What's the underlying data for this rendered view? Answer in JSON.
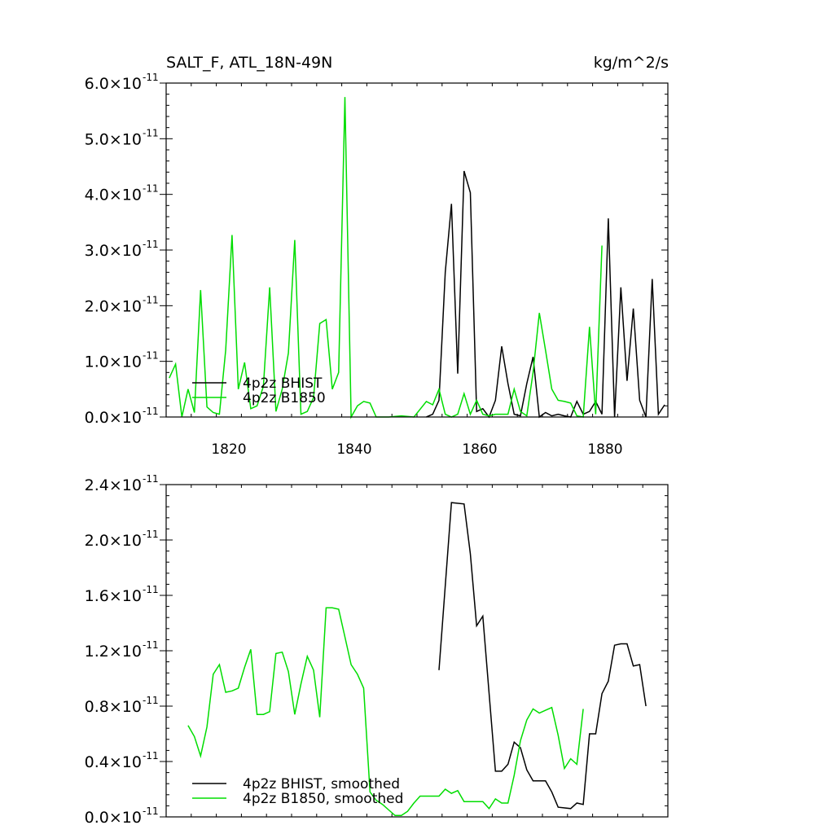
{
  "chart_data": [
    {
      "type": "line",
      "title": "SALT_F, ATL_18N-49N",
      "units": "kg/m^2/s",
      "xlim": [
        1810,
        1890
      ],
      "ylim": [
        0,
        6e-11
      ],
      "x_ticks": [
        1820,
        1840,
        1860,
        1880
      ],
      "x_tick_labels": [
        "1820",
        "1840",
        "1860",
        "1880"
      ],
      "y_ticks": [
        0,
        1e-11,
        2e-11,
        3e-11,
        4e-11,
        5e-11,
        6e-11
      ],
      "y_tick_mantissas": [
        "0.0",
        "1.0",
        "2.0",
        "3.0",
        "4.0",
        "5.0",
        "6.0"
      ],
      "y_tick_suffix": "×10",
      "y_tick_exponent": "-11",
      "legend_placement": "bottom-left",
      "series": [
        {
          "name": "4p2z BHIST",
          "color": "#000000",
          "points": [
            [
              1851.5,
              0.0
            ],
            [
              1852.5,
              5e-13
            ],
            [
              1853.5,
              3e-12
            ],
            [
              1854.5,
              2.6e-11
            ],
            [
              1855.5,
              3.83e-11
            ],
            [
              1856.5,
              7.8e-12
            ],
            [
              1857.5,
              4.42e-11
            ],
            [
              1858.5,
              4.03e-11
            ],
            [
              1859.5,
              1e-12
            ],
            [
              1860.5,
              1.5e-12
            ],
            [
              1861.5,
              0.0
            ],
            [
              1862.5,
              3e-12
            ],
            [
              1863.5,
              1.27e-11
            ],
            [
              1864.5,
              6e-12
            ],
            [
              1865.5,
              5e-13
            ],
            [
              1866.5,
              2e-13
            ],
            [
              1867.5,
              6e-12
            ],
            [
              1868.5,
              1.08e-11
            ],
            [
              1869.5,
              0.0
            ],
            [
              1870.5,
              8e-13
            ],
            [
              1871.5,
              2e-13
            ],
            [
              1872.5,
              5e-13
            ],
            [
              1873.5,
              2e-13
            ],
            [
              1874.5,
              0.0
            ],
            [
              1875.5,
              2.8e-12
            ],
            [
              1876.5,
              5e-13
            ],
            [
              1877.5,
              1e-12
            ],
            [
              1878.5,
              2.8e-12
            ],
            [
              1879.5,
              5e-13
            ],
            [
              1880.5,
              3.57e-11
            ],
            [
              1881.5,
              0.0
            ],
            [
              1882.5,
              2.33e-11
            ],
            [
              1883.5,
              6.5e-12
            ],
            [
              1884.5,
              1.95e-11
            ],
            [
              1885.5,
              3e-12
            ],
            [
              1886.5,
              0.0
            ],
            [
              1887.5,
              2.48e-11
            ],
            [
              1888.5,
              5e-13
            ],
            [
              1889.5,
              2.2e-12
            ]
          ]
        },
        {
          "name": "4p2z B1850",
          "color": "#00dd00",
          "points": [
            [
              1810.5,
              7e-12
            ],
            [
              1811.5,
              9.5e-12
            ],
            [
              1812.5,
              0.0
            ],
            [
              1813.5,
              5e-12
            ],
            [
              1814.5,
              8e-13
            ],
            [
              1815.5,
              2.28e-11
            ],
            [
              1816.5,
              1.8e-12
            ],
            [
              1817.5,
              8e-13
            ],
            [
              1818.5,
              5e-13
            ],
            [
              1819.5,
              1.2e-11
            ],
            [
              1820.5,
              3.27e-11
            ],
            [
              1821.5,
              5e-12
            ],
            [
              1822.5,
              9.8e-12
            ],
            [
              1823.5,
              1.5e-12
            ],
            [
              1824.5,
              2e-12
            ],
            [
              1825.5,
              5.5e-12
            ],
            [
              1826.5,
              2.33e-11
            ],
            [
              1827.5,
              1e-12
            ],
            [
              1828.5,
              5e-12
            ],
            [
              1829.5,
              1.15e-11
            ],
            [
              1830.5,
              3.18e-11
            ],
            [
              1831.5,
              5e-13
            ],
            [
              1832.5,
              1e-12
            ],
            [
              1833.5,
              3.5e-12
            ],
            [
              1834.5,
              1.68e-11
            ],
            [
              1835.5,
              1.75e-11
            ],
            [
              1836.5,
              5e-12
            ],
            [
              1837.5,
              8e-12
            ],
            [
              1838.5,
              5.75e-11
            ],
            [
              1839.5,
              0.0
            ],
            [
              1840.5,
              2e-12
            ],
            [
              1841.5,
              2.8e-12
            ],
            [
              1842.5,
              2.5e-12
            ],
            [
              1843.5,
              0.0
            ],
            [
              1845.5,
              0.0
            ],
            [
              1847.5,
              2e-13
            ],
            [
              1849.5,
              0.0
            ],
            [
              1851.5,
              2.8e-12
            ],
            [
              1852.5,
              2.2e-12
            ],
            [
              1853.5,
              5e-12
            ],
            [
              1854.5,
              5e-13
            ],
            [
              1855.5,
              0.0
            ],
            [
              1856.5,
              5e-13
            ],
            [
              1857.5,
              4.2e-12
            ],
            [
              1858.5,
              5e-13
            ],
            [
              1859.5,
              3e-12
            ],
            [
              1860.5,
              5e-13
            ],
            [
              1861.5,
              2e-13
            ],
            [
              1862.5,
              5e-13
            ],
            [
              1863.5,
              5e-13
            ],
            [
              1864.5,
              5e-13
            ],
            [
              1865.5,
              5e-12
            ],
            [
              1866.5,
              1e-12
            ],
            [
              1867.5,
              2e-13
            ],
            [
              1868.5,
              8e-12
            ],
            [
              1869.5,
              1.87e-11
            ],
            [
              1870.5,
              1.2e-11
            ],
            [
              1871.5,
              5e-12
            ],
            [
              1872.5,
              3e-12
            ],
            [
              1873.5,
              2.8e-12
            ],
            [
              1874.5,
              2.5e-12
            ],
            [
              1875.5,
              2e-13
            ],
            [
              1876.5,
              0.0
            ],
            [
              1877.5,
              1.62e-11
            ],
            [
              1878.5,
              5e-13
            ],
            [
              1879.5,
              3.08e-11
            ]
          ]
        }
      ]
    },
    {
      "type": "line",
      "xlim": [
        1810,
        1890
      ],
      "ylim": [
        0,
        2.4e-11
      ],
      "x_ticks": [
        1820,
        1840,
        1860,
        1880
      ],
      "y_ticks": [
        0,
        4e-12,
        8e-12,
        1.2e-11,
        1.6e-11,
        2e-11,
        2.4e-11
      ],
      "y_tick_mantissas": [
        "0.0",
        "0.4",
        "0.8",
        "1.2",
        "1.6",
        "2.0",
        "2.4"
      ],
      "y_tick_suffix": "×10",
      "y_tick_exponent": "-11",
      "legend_placement": "bottom-left",
      "series": [
        {
          "name": "4p2z BHIST, smoothed",
          "color": "#000000",
          "points": [
            [
              1853.5,
              1.06e-11
            ],
            [
              1855.5,
              2.27e-11
            ],
            [
              1857.5,
              2.26e-11
            ],
            [
              1858.5,
              1.9e-11
            ],
            [
              1859.5,
              1.38e-11
            ],
            [
              1860.5,
              1.45e-11
            ],
            [
              1862.5,
              3.3e-12
            ],
            [
              1863.5,
              3.3e-12
            ],
            [
              1864.5,
              3.8e-12
            ],
            [
              1865.5,
              5.4e-12
            ],
            [
              1866.5,
              5e-12
            ],
            [
              1867.5,
              3.4e-12
            ],
            [
              1868.5,
              2.6e-12
            ],
            [
              1870.5,
              2.6e-12
            ],
            [
              1871.5,
              1.8e-12
            ],
            [
              1872.5,
              7e-13
            ],
            [
              1874.5,
              6e-13
            ],
            [
              1875.5,
              1e-12
            ],
            [
              1876.5,
              9e-13
            ],
            [
              1877.5,
              6e-12
            ],
            [
              1878.5,
              6e-12
            ],
            [
              1879.5,
              8.9e-12
            ],
            [
              1880.5,
              9.8e-12
            ],
            [
              1881.5,
              1.24e-11
            ],
            [
              1882.5,
              1.25e-11
            ],
            [
              1883.5,
              1.25e-11
            ],
            [
              1884.5,
              1.09e-11
            ],
            [
              1885.5,
              1.1e-11
            ],
            [
              1886.5,
              8e-12
            ]
          ]
        },
        {
          "name": "4p2z B1850, smoothed",
          "color": "#00dd00",
          "points": [
            [
              1813.5,
              6.6e-12
            ],
            [
              1814.5,
              5.8e-12
            ],
            [
              1815.5,
              4.4e-12
            ],
            [
              1816.5,
              6.5e-12
            ],
            [
              1817.5,
              1.03e-11
            ],
            [
              1818.5,
              1.1e-11
            ],
            [
              1819.5,
              9e-12
            ],
            [
              1820.5,
              9.1e-12
            ],
            [
              1821.5,
              9.3e-12
            ],
            [
              1822.5,
              1.08e-11
            ],
            [
              1823.5,
              1.21e-11
            ],
            [
              1824.5,
              7.4e-12
            ],
            [
              1825.5,
              7.4e-12
            ],
            [
              1826.5,
              7.6e-12
            ],
            [
              1827.5,
              1.18e-11
            ],
            [
              1828.5,
              1.19e-11
            ],
            [
              1829.5,
              1.05e-11
            ],
            [
              1830.5,
              7.4e-12
            ],
            [
              1831.5,
              9.6e-12
            ],
            [
              1832.5,
              1.16e-11
            ],
            [
              1833.5,
              1.06e-11
            ],
            [
              1834.5,
              7.2e-12
            ],
            [
              1835.5,
              1.51e-11
            ],
            [
              1836.5,
              1.51e-11
            ],
            [
              1837.5,
              1.5e-11
            ],
            [
              1838.5,
              1.3e-11
            ],
            [
              1839.5,
              1.1e-11
            ],
            [
              1840.5,
              1.03e-11
            ],
            [
              1841.5,
              9.3e-12
            ],
            [
              1842.5,
              1.8e-12
            ],
            [
              1843.5,
              1.2e-12
            ],
            [
              1844.5,
              9e-13
            ],
            [
              1845.5,
              5e-13
            ],
            [
              1846.5,
              1e-13
            ],
            [
              1847.5,
              1e-13
            ],
            [
              1848.5,
              4e-13
            ],
            [
              1849.5,
              1e-12
            ],
            [
              1850.5,
              1.5e-12
            ],
            [
              1852.5,
              1.5e-12
            ],
            [
              1853.5,
              1.5e-12
            ],
            [
              1854.5,
              2e-12
            ],
            [
              1855.5,
              1.7e-12
            ],
            [
              1856.5,
              1.9e-12
            ],
            [
              1857.5,
              1.1e-12
            ],
            [
              1860.5,
              1.1e-12
            ],
            [
              1861.5,
              6e-13
            ],
            [
              1862.5,
              1.3e-12
            ],
            [
              1863.5,
              1e-12
            ],
            [
              1864.5,
              1e-12
            ],
            [
              1865.5,
              3e-12
            ],
            [
              1866.5,
              5.5e-12
            ],
            [
              1867.5,
              7e-12
            ],
            [
              1868.5,
              7.8e-12
            ],
            [
              1869.5,
              7.5e-12
            ],
            [
              1870.5,
              7.7e-12
            ],
            [
              1871.5,
              7.9e-12
            ],
            [
              1872.5,
              5.9e-12
            ],
            [
              1873.5,
              3.5e-12
            ],
            [
              1874.5,
              4.2e-12
            ],
            [
              1875.5,
              3.8e-12
            ],
            [
              1876.5,
              7.8e-12
            ]
          ]
        }
      ]
    }
  ]
}
